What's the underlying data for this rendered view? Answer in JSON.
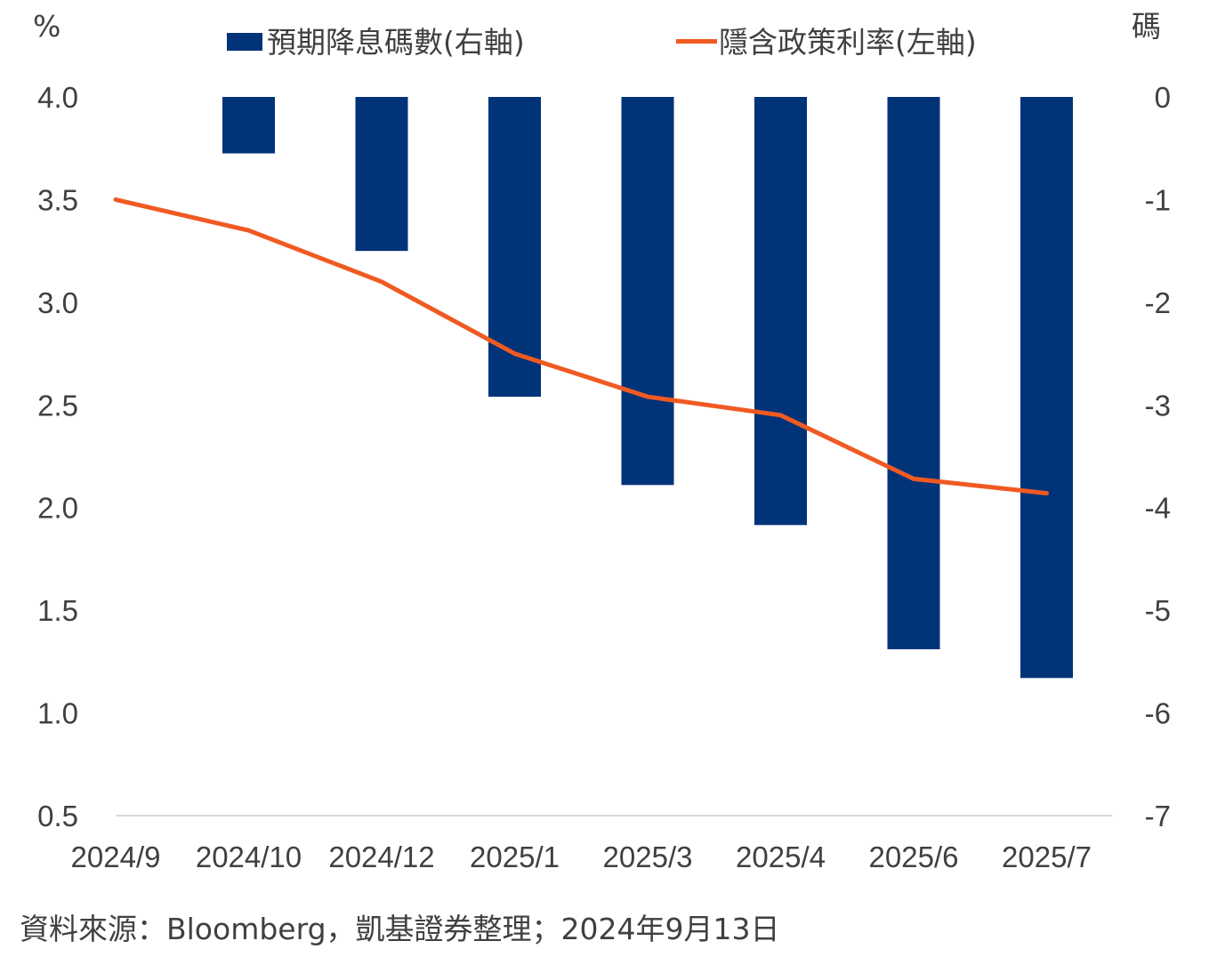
{
  "chart_data": {
    "type": "bar+line",
    "categories": [
      "2024/9",
      "2024/10",
      "2024/12",
      "2025/1",
      "2025/3",
      "2025/4",
      "2025/6",
      "2025/7"
    ],
    "left_axis": {
      "unit": "%",
      "ticks": [
        "4.0",
        "3.5",
        "3.0",
        "2.5",
        "2.0",
        "1.5",
        "1.0",
        "0.5"
      ],
      "ylim": [
        0.5,
        4.0
      ]
    },
    "right_axis": {
      "unit": "碼",
      "ticks": [
        "0",
        "-1",
        "-2",
        "-3",
        "-4",
        "-5",
        "-6",
        "-7"
      ],
      "ylim": [
        -7,
        0
      ]
    },
    "series": [
      {
        "name": "預期降息碼數(右軸)",
        "type": "bar",
        "axis": "right",
        "color": "#003378",
        "values": [
          0,
          -0.55,
          -1.5,
          -2.92,
          -3.78,
          -4.17,
          -5.38,
          -5.66
        ]
      },
      {
        "name": "隱含政策利率(左軸)",
        "type": "line",
        "axis": "left",
        "color": "#f05a22",
        "values": [
          3.5,
          3.35,
          3.1,
          2.75,
          2.54,
          2.45,
          2.14,
          2.07
        ]
      }
    ],
    "legend": "top",
    "grid": false
  },
  "source_text": "資料來源：Bloomberg，凱基證券整理；2024年9月13日"
}
